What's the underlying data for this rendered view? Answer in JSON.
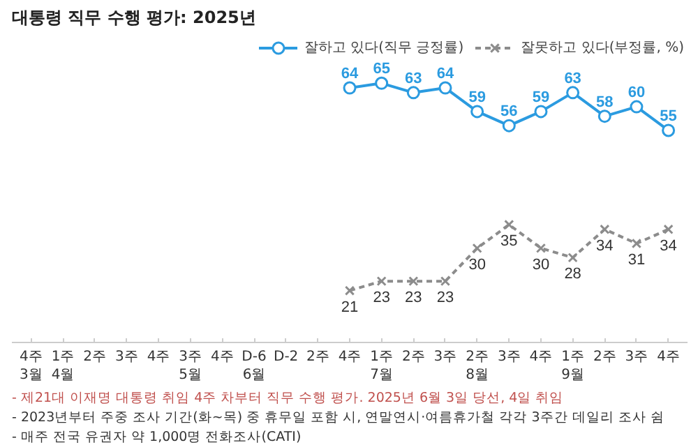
{
  "chart_data": {
    "type": "line",
    "title": "대통령 직무 수행 평가: 2025년",
    "categories": [
      "4주\n3월",
      "1주\n4월",
      "2주",
      "3주",
      "4주",
      "3주\n5월",
      "4주",
      "D-6\n6월",
      "D-2",
      "2주",
      "4주",
      "1주\n7월",
      "2주",
      "3주",
      "2주\n8월",
      "3주",
      "4주",
      "1주\n9월",
      "2주",
      "3주",
      "4주"
    ],
    "series": [
      {
        "name": "잘하고 있다(직무 긍정률)",
        "color": "#2b9be0",
        "line_style": "solid",
        "marker": "circle",
        "values": [
          null,
          null,
          null,
          null,
          null,
          null,
          null,
          null,
          null,
          null,
          64,
          65,
          63,
          64,
          59,
          56,
          59,
          63,
          58,
          60,
          55
        ]
      },
      {
        "name": "잘못하고 있다(부정률, %)",
        "color": "#8c8c8c",
        "line_style": "dashed",
        "marker": "cross",
        "values": [
          null,
          null,
          null,
          null,
          null,
          null,
          null,
          null,
          null,
          null,
          21,
          23,
          23,
          23,
          30,
          35,
          30,
          28,
          34,
          31,
          34
        ]
      }
    ],
    "data_labels": true,
    "legend": "top right",
    "grid": false,
    "annotations": [
      "- 제21대 이재명 대통령 취임 4주 차부터 직무 수행 평가. 2025년 6월 3일 당선, 4일 취임",
      "- 2023년부터 주중 조사 기간(화~목) 중 휴무일 포함 시, 연말연시·여름휴가철 각각 3주간 데일리 조사 쉼",
      "- 매주 전국 유권자 약 1,000명 전화조사(CATI)"
    ]
  }
}
